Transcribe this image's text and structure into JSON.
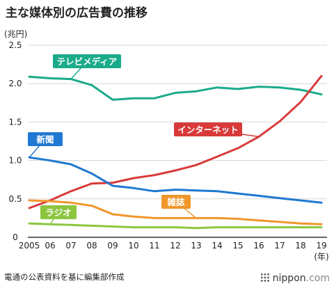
{
  "title": "主な媒体別の広告費の推移",
  "unit_label": "(兆円)",
  "source": "電通の公表資料を基に編集部作成",
  "brand": {
    "name": "nippon",
    "suffix": ".com"
  },
  "chart_data": {
    "type": "line",
    "x": [
      2005,
      2006,
      2007,
      2008,
      2009,
      2010,
      2011,
      2012,
      2013,
      2014,
      2015,
      2016,
      2017,
      2018,
      2019
    ],
    "x_tick_labels": [
      "2005",
      "06",
      "07",
      "08",
      "09",
      "10",
      "11",
      "12",
      "13",
      "14",
      "15",
      "16",
      "17",
      "18",
      "19"
    ],
    "x_unit_label": "(年)",
    "ylim": [
      0,
      2.5
    ],
    "y_ticks": [
      0,
      0.5,
      1.0,
      1.5,
      2.0,
      2.5
    ],
    "y_tick_labels": [
      "0",
      "0.5",
      "1.0",
      "1.5",
      "2.0",
      "2.5"
    ],
    "grid": true,
    "series": [
      {
        "name": "テレビメディア",
        "color": "#1aab8a",
        "values": [
          2.09,
          2.07,
          2.06,
          1.98,
          1.79,
          1.81,
          1.81,
          1.88,
          1.9,
          1.95,
          1.93,
          1.96,
          1.95,
          1.92,
          1.86
        ]
      },
      {
        "name": "インターネット",
        "color": "#d83a3a",
        "values": [
          0.38,
          0.48,
          0.6,
          0.7,
          0.71,
          0.77,
          0.81,
          0.87,
          0.94,
          1.05,
          1.16,
          1.31,
          1.51,
          1.76,
          2.1
        ]
      },
      {
        "name": "新聞",
        "color": "#1f78d1",
        "values": [
          1.04,
          1.0,
          0.95,
          0.83,
          0.67,
          0.64,
          0.6,
          0.62,
          0.61,
          0.6,
          0.57,
          0.54,
          0.51,
          0.48,
          0.45
        ]
      },
      {
        "name": "雑誌",
        "color": "#f0962a",
        "values": [
          0.48,
          0.47,
          0.45,
          0.41,
          0.3,
          0.27,
          0.25,
          0.25,
          0.25,
          0.25,
          0.24,
          0.22,
          0.2,
          0.18,
          0.17
        ]
      },
      {
        "name": "ラジオ",
        "color": "#8cc63f",
        "values": [
          0.18,
          0.17,
          0.16,
          0.15,
          0.14,
          0.13,
          0.13,
          0.13,
          0.12,
          0.13,
          0.13,
          0.13,
          0.13,
          0.13,
          0.13
        ]
      }
    ]
  }
}
